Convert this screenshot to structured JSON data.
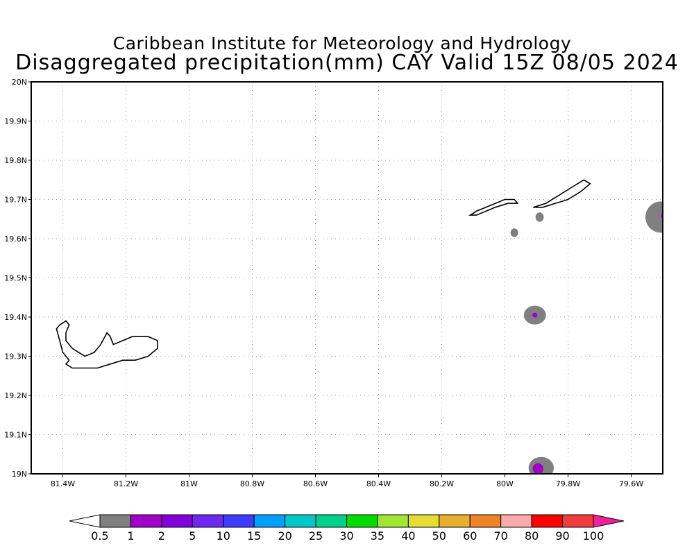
{
  "title": {
    "line1": "Caribbean Institute for Meteorology and Hydrology",
    "line2": "Disaggregated precipitation(mm) CAY Valid 15Z 08/05 2024"
  },
  "map": {
    "lon_range": [
      -81.5,
      -79.5
    ],
    "lat_range": [
      19.0,
      20.0
    ],
    "grid": "dotted",
    "x_ticks": [
      {
        "lon": -81.4,
        "label": "81.4W"
      },
      {
        "lon": -81.2,
        "label": "81.2W"
      },
      {
        "lon": -81.0,
        "label": "81W"
      },
      {
        "lon": -80.8,
        "label": "80.8W"
      },
      {
        "lon": -80.6,
        "label": "80.6W"
      },
      {
        "lon": -80.4,
        "label": "80.4W"
      },
      {
        "lon": -80.2,
        "label": "80.2W"
      },
      {
        "lon": -80.0,
        "label": "80W"
      },
      {
        "lon": -79.8,
        "label": "79.8W"
      },
      {
        "lon": -79.6,
        "label": "79.6W"
      }
    ],
    "y_ticks": [
      {
        "lat": 20.0,
        "label": "20N"
      },
      {
        "lat": 19.9,
        "label": "19.9N"
      },
      {
        "lat": 19.8,
        "label": "19.8N"
      },
      {
        "lat": 19.7,
        "label": "19.7N"
      },
      {
        "lat": 19.6,
        "label": "19.6N"
      },
      {
        "lat": 19.5,
        "label": "19.5N"
      },
      {
        "lat": 19.4,
        "label": "19.4N"
      },
      {
        "lat": 19.3,
        "label": "19.3N"
      },
      {
        "lat": 19.2,
        "label": "19.2N"
      },
      {
        "lat": 19.1,
        "label": "19.1N"
      },
      {
        "lat": 19.0,
        "label": "19N"
      }
    ],
    "islands": [
      {
        "name": "grand-cayman",
        "outline": [
          [
            -81.41,
            19.38
          ],
          [
            -81.39,
            19.39
          ],
          [
            -81.38,
            19.38
          ],
          [
            -81.39,
            19.36
          ],
          [
            -81.39,
            19.34
          ],
          [
            -81.37,
            19.32
          ],
          [
            -81.35,
            19.31
          ],
          [
            -81.33,
            19.3
          ],
          [
            -81.3,
            19.31
          ],
          [
            -81.28,
            19.33
          ],
          [
            -81.26,
            19.36
          ],
          [
            -81.25,
            19.35
          ],
          [
            -81.24,
            19.33
          ],
          [
            -81.21,
            19.34
          ],
          [
            -81.18,
            19.35
          ],
          [
            -81.13,
            19.35
          ],
          [
            -81.1,
            19.34
          ],
          [
            -81.1,
            19.32
          ],
          [
            -81.13,
            19.3
          ],
          [
            -81.17,
            19.29
          ],
          [
            -81.21,
            19.29
          ],
          [
            -81.25,
            19.28
          ],
          [
            -81.29,
            19.27
          ],
          [
            -81.33,
            19.27
          ],
          [
            -81.37,
            19.27
          ],
          [
            -81.39,
            19.28
          ],
          [
            -81.38,
            19.29
          ],
          [
            -81.4,
            19.31
          ],
          [
            -81.41,
            19.34
          ],
          [
            -81.42,
            19.37
          ]
        ]
      },
      {
        "name": "little-cayman",
        "outline": [
          [
            -80.11,
            19.66
          ],
          [
            -80.09,
            19.67
          ],
          [
            -80.06,
            19.68
          ],
          [
            -80.03,
            19.69
          ],
          [
            -80.0,
            19.7
          ],
          [
            -79.97,
            19.7
          ],
          [
            -79.96,
            19.69
          ],
          [
            -79.99,
            19.69
          ],
          [
            -80.03,
            19.68
          ],
          [
            -80.06,
            19.67
          ],
          [
            -80.09,
            19.66
          ]
        ]
      },
      {
        "name": "cayman-brac",
        "outline": [
          [
            -79.91,
            19.68
          ],
          [
            -79.87,
            19.69
          ],
          [
            -79.83,
            19.71
          ],
          [
            -79.79,
            19.73
          ],
          [
            -79.75,
            19.75
          ],
          [
            -79.73,
            19.74
          ],
          [
            -79.76,
            19.72
          ],
          [
            -79.8,
            19.7
          ],
          [
            -79.84,
            19.69
          ],
          [
            -79.88,
            19.68
          ],
          [
            -79.9,
            19.68
          ]
        ]
      }
    ],
    "precip_areas": [
      {
        "lon": -79.89,
        "lat": 19.655,
        "rlon": 0.013,
        "rlat": 0.012,
        "category": "0.5-1"
      },
      {
        "lon": -79.97,
        "lat": 19.615,
        "rlon": 0.012,
        "rlat": 0.011,
        "category": "0.5-1"
      },
      {
        "lon": -79.905,
        "lat": 19.405,
        "rlon": 0.035,
        "rlat": 0.024,
        "category": "0.5-1"
      },
      {
        "lon": -79.905,
        "lat": 19.405,
        "rlon": 0.008,
        "rlat": 0.006,
        "category": "1-2"
      },
      {
        "lon": -79.885,
        "lat": 19.015,
        "rlon": 0.04,
        "rlat": 0.028,
        "category": "0.5-1"
      },
      {
        "lon": -79.895,
        "lat": 19.013,
        "rlon": 0.017,
        "rlat": 0.014,
        "category": "1-2"
      },
      {
        "lon": -79.505,
        "lat": 19.655,
        "rlon": 0.05,
        "rlat": 0.04,
        "category": "0.5-1"
      },
      {
        "lon": -79.497,
        "lat": 19.658,
        "rlon": 0.008,
        "rlat": 0.009,
        "category": "1-2"
      }
    ]
  },
  "colorbar": {
    "labels": [
      "0.5",
      "1",
      "2",
      "5",
      "10",
      "15",
      "20",
      "25",
      "30",
      "35",
      "40",
      "50",
      "60",
      "70",
      "80",
      "90",
      "100"
    ],
    "under_color": "#ffffff",
    "colors": [
      "#808080",
      "#a000c8",
      "#8200dc",
      "#6e28f0",
      "#3c3cff",
      "#00a0ff",
      "#00c8c8",
      "#00d28c",
      "#00dc00",
      "#a0e632",
      "#e6dc32",
      "#e6af2d",
      "#f08228",
      "#faaaaa",
      "#ff0000",
      "#f03c3c"
    ],
    "over_color": "#f0209a"
  }
}
